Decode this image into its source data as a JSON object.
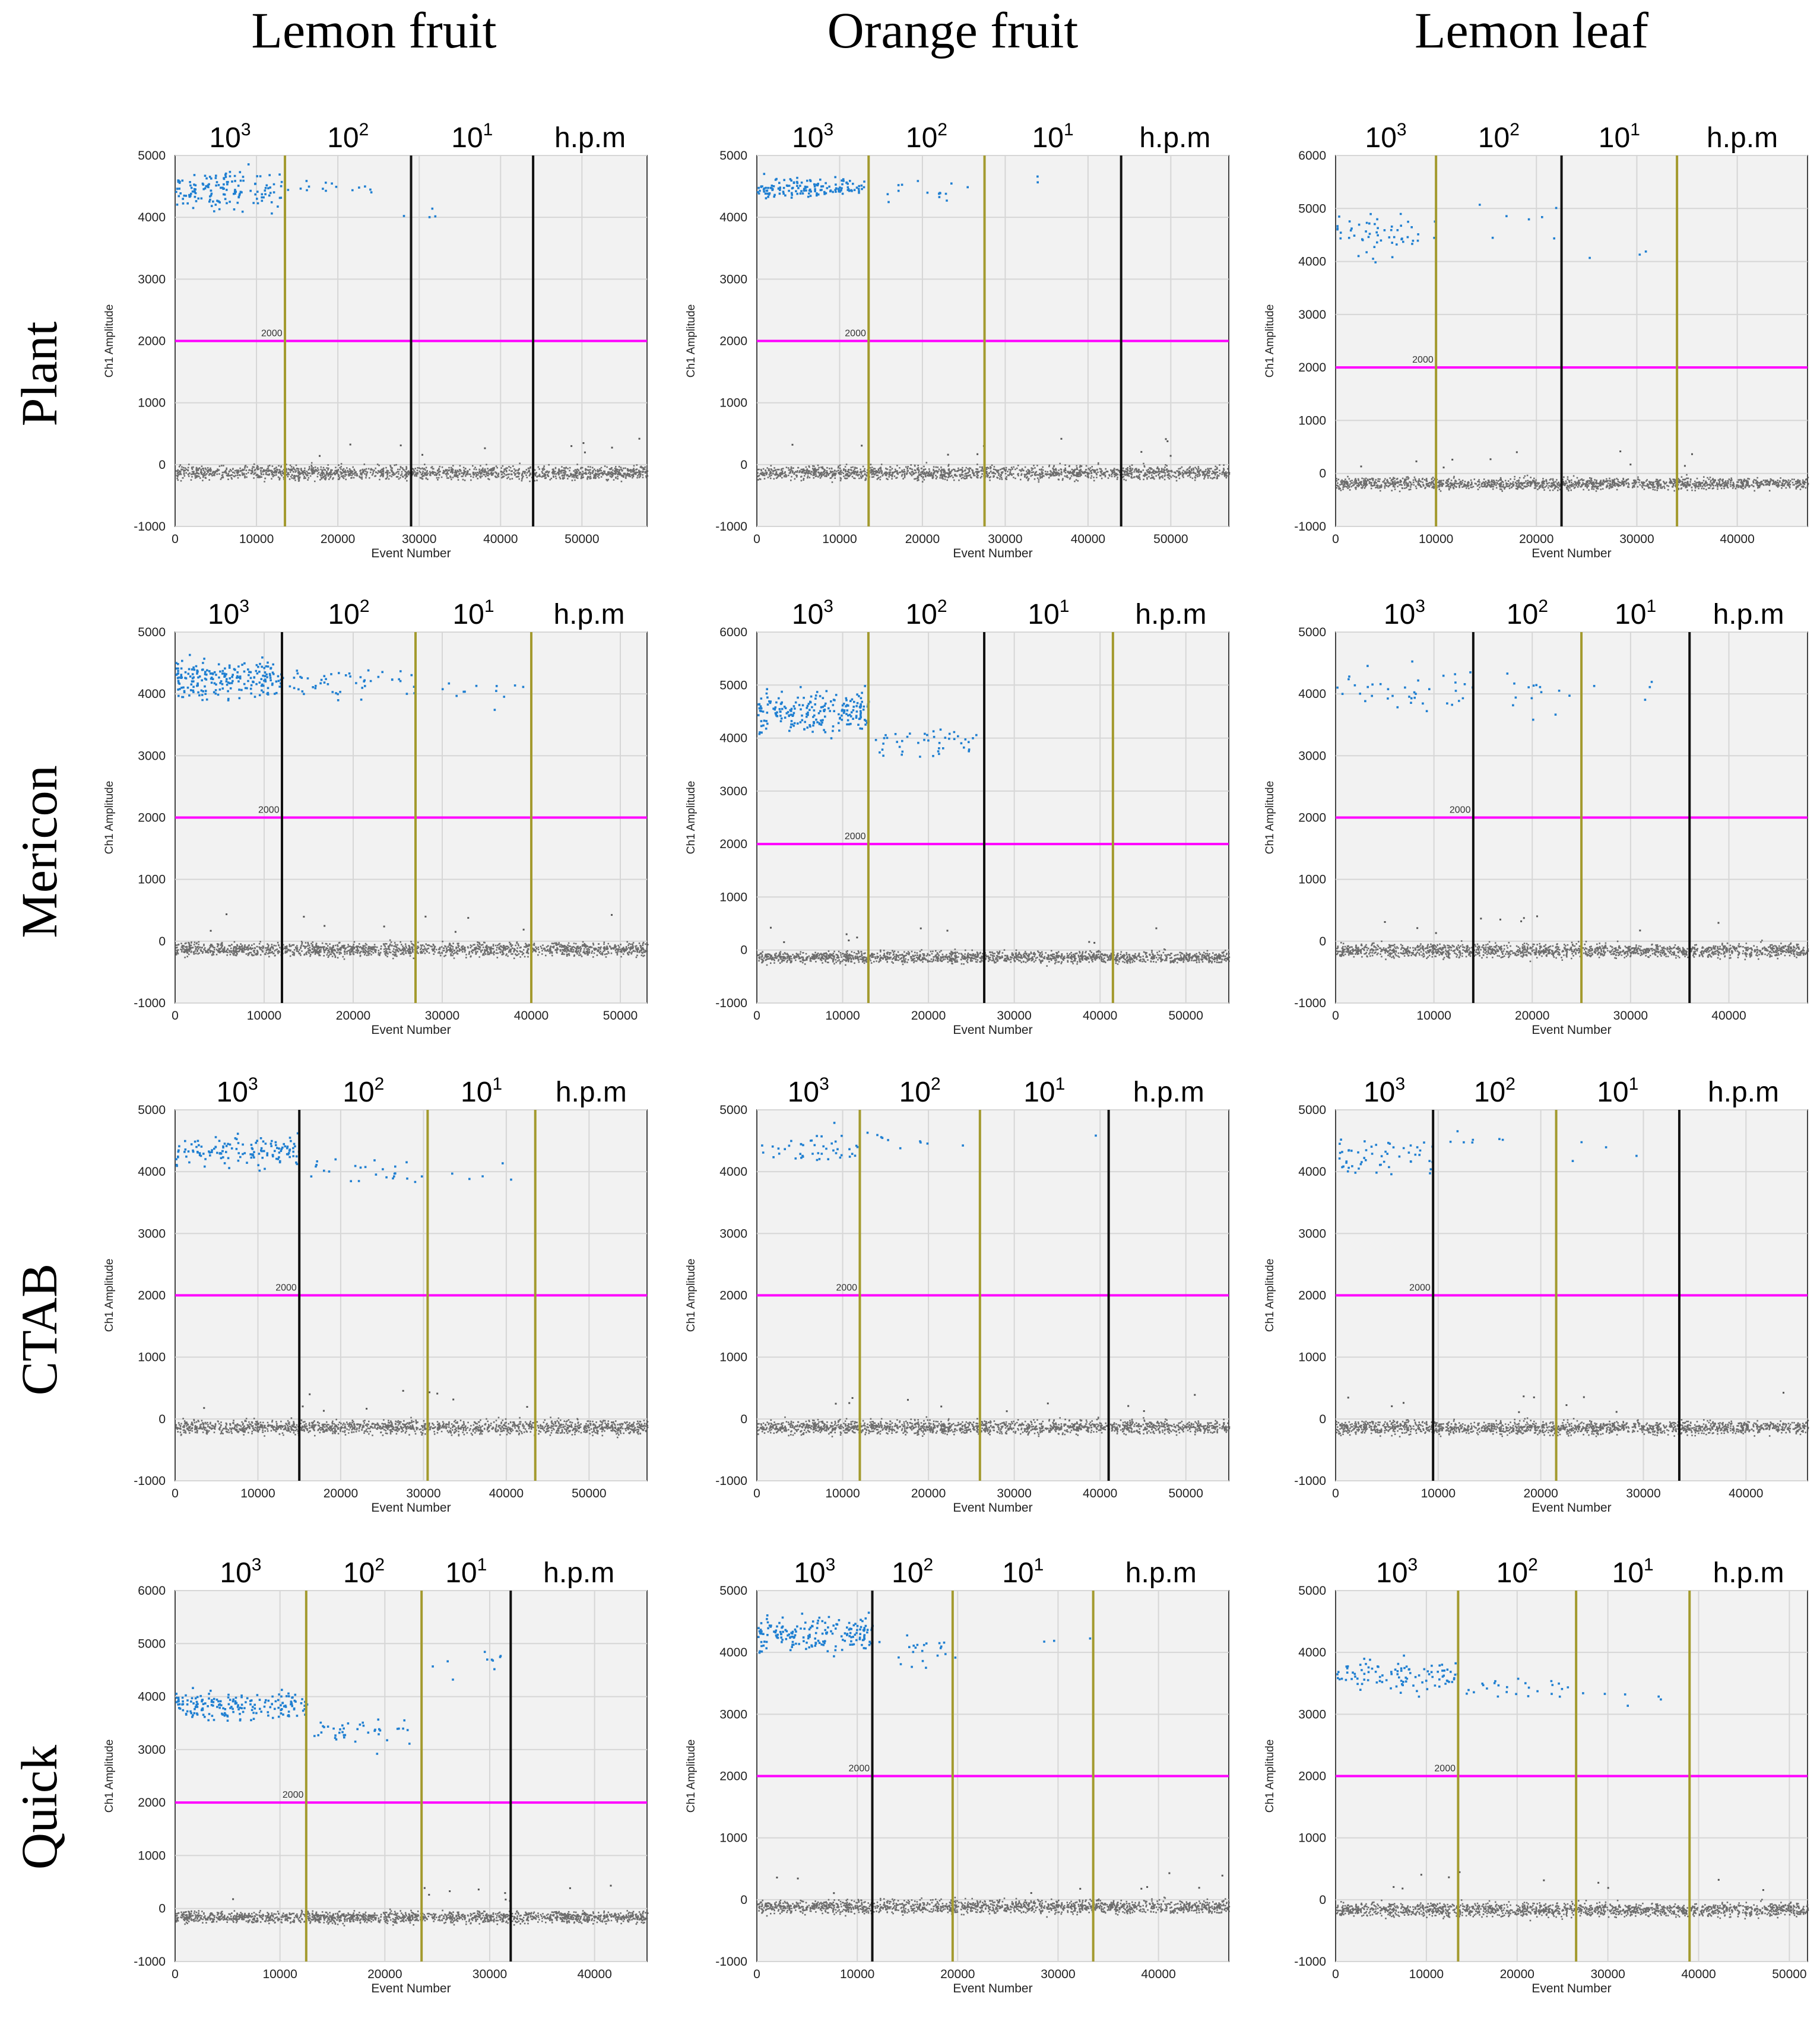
{
  "figure": {
    "column_titles": [
      "Lemon fruit",
      "Orange fruit",
      "Lemon leaf"
    ],
    "row_titles": [
      "Plant",
      "Mericon",
      "CTAB",
      "Quick"
    ],
    "segment_labels": [
      {
        "base": "10",
        "exp": "3"
      },
      {
        "base": "10",
        "exp": "2"
      },
      {
        "base": "10",
        "exp": "1"
      },
      {
        "base": "h.p.m",
        "exp": ""
      }
    ],
    "xlabel": "Event Number",
    "ylabel": "Ch1 Amplitude",
    "threshold_label": "2000",
    "colors": {
      "positive": "#1f7fd1",
      "negative": "#555555",
      "threshold": "#ff00ff",
      "divider_olive": "#a39a2e",
      "divider_black": "#111111",
      "plot_bg": "#f2f2f2",
      "grid": "#d6d6d6"
    }
  },
  "chart_data": [
    {
      "panel": "Plant / Lemon fruit",
      "type": "scatter",
      "title": "",
      "xlabel": "Event Number",
      "ylabel": "Ch1 Amplitude",
      "xlim": [
        0,
        58000
      ],
      "ylim": [
        -1000,
        5000
      ],
      "xticks": [
        0,
        10000,
        20000,
        30000,
        40000,
        50000
      ],
      "yticks": [
        -1000,
        0,
        1000,
        2000,
        3000,
        4000,
        5000
      ],
      "threshold": 2000,
      "dividers": [
        {
          "x": 13500,
          "color": "olive"
        },
        {
          "x": 29000,
          "color": "black"
        },
        {
          "x": 44000,
          "color": "black"
        }
      ],
      "positive_clusters": [
        {
          "x": [
            0,
            13000
          ],
          "y_mean": 4450,
          "y_spread": 300,
          "count": 150
        },
        {
          "x": [
            13500,
            24000
          ],
          "y_mean": 4500,
          "y_spread": 150,
          "count": 15
        },
        {
          "x": [
            27000,
            32000
          ],
          "y_mean": 4100,
          "y_spread": 200,
          "count": 4
        }
      ],
      "negative_band": {
        "x": [
          0,
          58000
        ],
        "y": -120
      }
    },
    {
      "panel": "Plant / Orange fruit",
      "type": "scatter",
      "title": "",
      "xlabel": "Event Number",
      "ylabel": "Ch1 Amplitude",
      "xlim": [
        0,
        57000
      ],
      "ylim": [
        -1000,
        5000
      ],
      "xticks": [
        0,
        10000,
        20000,
        30000,
        40000,
        50000
      ],
      "yticks": [
        -1000,
        0,
        1000,
        2000,
        3000,
        4000,
        5000
      ],
      "threshold": 2000,
      "dividers": [
        {
          "x": 13500,
          "color": "olive"
        },
        {
          "x": 27500,
          "color": "olive"
        },
        {
          "x": 44000,
          "color": "black"
        }
      ],
      "positive_clusters": [
        {
          "x": [
            0,
            13000
          ],
          "y_mean": 4500,
          "y_spread": 150,
          "count": 150
        },
        {
          "x": [
            15000,
            27000
          ],
          "y_mean": 4450,
          "y_spread": 150,
          "count": 15
        },
        {
          "x": [
            30000,
            35000
          ],
          "y_mean": 4600,
          "y_spread": 150,
          "count": 2
        }
      ],
      "negative_band": {
        "x": [
          0,
          57000
        ],
        "y": -120
      }
    },
    {
      "panel": "Plant / Lemon leaf",
      "type": "scatter",
      "title": "",
      "xlabel": "Event Number",
      "ylabel": "Ch1 Amplitude",
      "xlim": [
        0,
        47000
      ],
      "ylim": [
        -1000,
        6000
      ],
      "xticks": [
        0,
        10000,
        20000,
        30000,
        40000
      ],
      "yticks": [
        -1000,
        0,
        1000,
        2000,
        3000,
        4000,
        5000,
        6000
      ],
      "threshold": 2000,
      "dividers": [
        {
          "x": 10000,
          "color": "olive"
        },
        {
          "x": 22500,
          "color": "black"
        },
        {
          "x": 34000,
          "color": "olive"
        }
      ],
      "positive_clusters": [
        {
          "x": [
            0,
            10000
          ],
          "y_mean": 4500,
          "y_spread": 400,
          "count": 55
        },
        {
          "x": [
            14000,
            22000
          ],
          "y_mean": 4800,
          "y_spread": 400,
          "count": 7
        },
        {
          "x": [
            25000,
            32000
          ],
          "y_mean": 4100,
          "y_spread": 200,
          "count": 3
        }
      ],
      "negative_band": {
        "x": [
          0,
          47000
        ],
        "y": -180
      }
    },
    {
      "panel": "Mericon / Lemon fruit",
      "type": "scatter",
      "title": "",
      "xlabel": "Event Number",
      "ylabel": "Ch1 Amplitude",
      "xlim": [
        0,
        53000
      ],
      "ylim": [
        -1000,
        5000
      ],
      "xticks": [
        0,
        10000,
        20000,
        30000,
        40000,
        50000
      ],
      "yticks": [
        -1000,
        0,
        1000,
        2000,
        3000,
        4000,
        5000
      ],
      "threshold": 2000,
      "dividers": [
        {
          "x": 12000,
          "color": "black"
        },
        {
          "x": 27000,
          "color": "olive"
        },
        {
          "x": 40000,
          "color": "olive"
        }
      ],
      "positive_clusters": [
        {
          "x": [
            0,
            12000
          ],
          "y_mean": 4250,
          "y_spread": 300,
          "count": 220
        },
        {
          "x": [
            12500,
            27000
          ],
          "y_mean": 4200,
          "y_spread": 250,
          "count": 50
        },
        {
          "x": [
            29000,
            40000
          ],
          "y_mean": 4100,
          "y_spread": 250,
          "count": 12
        }
      ],
      "negative_band": {
        "x": [
          0,
          53000
        ],
        "y": -120
      }
    },
    {
      "panel": "Mericon / Orange fruit",
      "type": "scatter",
      "title": "",
      "xlabel": "Event Number",
      "ylabel": "Ch1 Amplitude",
      "xlim": [
        0,
        55000
      ],
      "ylim": [
        -1000,
        6000
      ],
      "xticks": [
        0,
        10000,
        20000,
        30000,
        40000,
        50000
      ],
      "yticks": [
        -1000,
        0,
        1000,
        2000,
        3000,
        4000,
        5000,
        6000
      ],
      "threshold": 2000,
      "dividers": [
        {
          "x": 13000,
          "color": "olive"
        },
        {
          "x": 26500,
          "color": "black"
        },
        {
          "x": 41500,
          "color": "olive"
        }
      ],
      "positive_clusters": [
        {
          "x": [
            0,
            13000
          ],
          "y_mean": 4500,
          "y_spread": 350,
          "count": 220
        },
        {
          "x": [
            13500,
            25500
          ],
          "y_mean": 3950,
          "y_spread": 250,
          "count": 45
        }
      ],
      "negative_band": {
        "x": [
          0,
          55000
        ],
        "y": -120
      }
    },
    {
      "panel": "Mericon / Lemon leaf",
      "type": "scatter",
      "title": "",
      "xlabel": "Event Number",
      "ylabel": "Ch1 Amplitude",
      "xlim": [
        0,
        48000
      ],
      "ylim": [
        -1000,
        5000
      ],
      "xticks": [
        0,
        10000,
        20000,
        30000,
        40000
      ],
      "yticks": [
        -1000,
        0,
        1000,
        2000,
        3000,
        4000,
        5000
      ],
      "threshold": 2000,
      "dividers": [
        {
          "x": 14000,
          "color": "black"
        },
        {
          "x": 25000,
          "color": "olive"
        },
        {
          "x": 36000,
          "color": "black"
        }
      ],
      "positive_clusters": [
        {
          "x": [
            0,
            14000
          ],
          "y_mean": 4100,
          "y_spread": 350,
          "count": 40
        },
        {
          "x": [
            14500,
            25000
          ],
          "y_mean": 4000,
          "y_spread": 350,
          "count": 14
        },
        {
          "x": [
            26000,
            34000
          ],
          "y_mean": 4200,
          "y_spread": 200,
          "count": 4
        }
      ],
      "negative_band": {
        "x": [
          0,
          48000
        ],
        "y": -140
      }
    },
    {
      "panel": "CTAB / Lemon fruit",
      "type": "scatter",
      "title": "",
      "xlabel": "Event Number",
      "ylabel": "Ch1 Amplitude",
      "xlim": [
        0,
        57000
      ],
      "ylim": [
        -1000,
        5000
      ],
      "xticks": [
        0,
        10000,
        20000,
        30000,
        40000,
        50000
      ],
      "yticks": [
        -1000,
        0,
        1000,
        2000,
        3000,
        4000,
        5000
      ],
      "threshold": 2000,
      "dividers": [
        {
          "x": 15000,
          "color": "black"
        },
        {
          "x": 30500,
          "color": "olive"
        },
        {
          "x": 43500,
          "color": "olive"
        }
      ],
      "positive_clusters": [
        {
          "x": [
            0,
            15000
          ],
          "y_mean": 4350,
          "y_spread": 250,
          "count": 140
        },
        {
          "x": [
            15500,
            30000
          ],
          "y_mean": 4050,
          "y_spread": 250,
          "count": 25
        },
        {
          "x": [
            32000,
            43000
          ],
          "y_mean": 3950,
          "y_spread": 200,
          "count": 5
        }
      ],
      "negative_band": {
        "x": [
          0,
          57000
        ],
        "y": -120
      }
    },
    {
      "panel": "CTAB / Orange fruit",
      "type": "scatter",
      "title": "",
      "xlabel": "Event Number",
      "ylabel": "Ch1 Amplitude",
      "xlim": [
        0,
        55000
      ],
      "ylim": [
        -1000,
        5000
      ],
      "xticks": [
        0,
        10000,
        20000,
        30000,
        40000,
        50000
      ],
      "yticks": [
        -1000,
        0,
        1000,
        2000,
        3000,
        4000,
        5000
      ],
      "threshold": 2000,
      "dividers": [
        {
          "x": 12000,
          "color": "olive"
        },
        {
          "x": 26000,
          "color": "olive"
        },
        {
          "x": 41000,
          "color": "black"
        }
      ],
      "positive_clusters": [
        {
          "x": [
            0,
            12000
          ],
          "y_mean": 4350,
          "y_spread": 300,
          "count": 45
        },
        {
          "x": [
            12500,
            24000
          ],
          "y_mean": 4500,
          "y_spread": 120,
          "count": 10
        },
        {
          "x": [
            39000,
            41000
          ],
          "y_mean": 4600,
          "y_spread": 50,
          "count": 1
        }
      ],
      "negative_band": {
        "x": [
          0,
          55000
        ],
        "y": -120
      }
    },
    {
      "panel": "CTAB / Lemon leaf",
      "type": "scatter",
      "title": "",
      "xlabel": "Event Number",
      "ylabel": "Ch1 Amplitude",
      "xlim": [
        0,
        46000
      ],
      "ylim": [
        -1000,
        5000
      ],
      "xticks": [
        0,
        10000,
        20000,
        30000,
        40000
      ],
      "yticks": [
        -1000,
        0,
        1000,
        2000,
        3000,
        4000,
        5000
      ],
      "threshold": 2000,
      "dividers": [
        {
          "x": 9500,
          "color": "black"
        },
        {
          "x": 21500,
          "color": "olive"
        },
        {
          "x": 33500,
          "color": "black"
        }
      ],
      "positive_clusters": [
        {
          "x": [
            0,
            9500
          ],
          "y_mean": 4250,
          "y_spread": 300,
          "count": 55
        },
        {
          "x": [
            11000,
            19000
          ],
          "y_mean": 4550,
          "y_spread": 150,
          "count": 7
        },
        {
          "x": [
            22000,
            30000
          ],
          "y_mean": 4400,
          "y_spread": 250,
          "count": 4
        }
      ],
      "negative_band": {
        "x": [
          0,
          46000
        ],
        "y": -130
      }
    },
    {
      "panel": "Quick / Lemon fruit",
      "type": "scatter",
      "title": "",
      "xlabel": "Event Number",
      "ylabel": "Ch1 Amplitude",
      "xlim": [
        0,
        45000
      ],
      "ylim": [
        -1000,
        6000
      ],
      "xticks": [
        0,
        10000,
        20000,
        30000,
        40000
      ],
      "yticks": [
        -1000,
        0,
        1000,
        2000,
        3000,
        4000,
        5000,
        6000
      ],
      "threshold": 2000,
      "dividers": [
        {
          "x": 12500,
          "color": "olive"
        },
        {
          "x": 23500,
          "color": "olive"
        },
        {
          "x": 32000,
          "color": "black"
        }
      ],
      "positive_clusters": [
        {
          "x": [
            0,
            12500
          ],
          "y_mean": 3850,
          "y_spread": 250,
          "count": 190
        },
        {
          "x": [
            13000,
            23000
          ],
          "y_mean": 3350,
          "y_spread": 300,
          "count": 40
        },
        {
          "x": [
            23500,
            31500
          ],
          "y_mean": 4700,
          "y_spread": 450,
          "count": 10
        }
      ],
      "negative_band": {
        "x": [
          0,
          45000
        ],
        "y": -150
      }
    },
    {
      "panel": "Quick / Orange fruit",
      "type": "scatter",
      "title": "",
      "xlabel": "Event Number",
      "ylabel": "Ch1 Amplitude",
      "xlim": [
        0,
        47000
      ],
      "ylim": [
        -1000,
        5000
      ],
      "xticks": [
        0,
        10000,
        20000,
        30000,
        40000
      ],
      "yticks": [
        -1000,
        0,
        1000,
        2000,
        3000,
        4000,
        5000
      ],
      "threshold": 2000,
      "dividers": [
        {
          "x": 11500,
          "color": "black"
        },
        {
          "x": 19500,
          "color": "olive"
        },
        {
          "x": 33500,
          "color": "olive"
        }
      ],
      "positive_clusters": [
        {
          "x": [
            0,
            11500
          ],
          "y_mean": 4300,
          "y_spread": 250,
          "count": 190
        },
        {
          "x": [
            12000,
            20000
          ],
          "y_mean": 4050,
          "y_spread": 300,
          "count": 22
        },
        {
          "x": [
            28000,
            33500
          ],
          "y_mean": 4350,
          "y_spread": 150,
          "count": 3
        }
      ],
      "negative_band": {
        "x": [
          0,
          47000
        ],
        "y": -100
      }
    },
    {
      "panel": "Quick / Lemon leaf",
      "type": "scatter",
      "title": "",
      "xlabel": "Event Number",
      "ylabel": "Ch1 Amplitude",
      "xlim": [
        0,
        52000
      ],
      "ylim": [
        -1000,
        5000
      ],
      "xticks": [
        0,
        10000,
        20000,
        30000,
        40000,
        50000
      ],
      "yticks": [
        -1000,
        0,
        1000,
        2000,
        3000,
        4000,
        5000
      ],
      "threshold": 2000,
      "dividers": [
        {
          "x": 13500,
          "color": "olive"
        },
        {
          "x": 26500,
          "color": "olive"
        },
        {
          "x": 39000,
          "color": "olive"
        }
      ],
      "positive_clusters": [
        {
          "x": [
            0,
            13500
          ],
          "y_mean": 3650,
          "y_spread": 250,
          "count": 100
        },
        {
          "x": [
            14000,
            26000
          ],
          "y_mean": 3450,
          "y_spread": 200,
          "count": 25
        },
        {
          "x": [
            27000,
            37000
          ],
          "y_mean": 3350,
          "y_spread": 200,
          "count": 6
        }
      ],
      "negative_band": {
        "x": [
          0,
          52000
        ],
        "y": -150
      }
    }
  ]
}
